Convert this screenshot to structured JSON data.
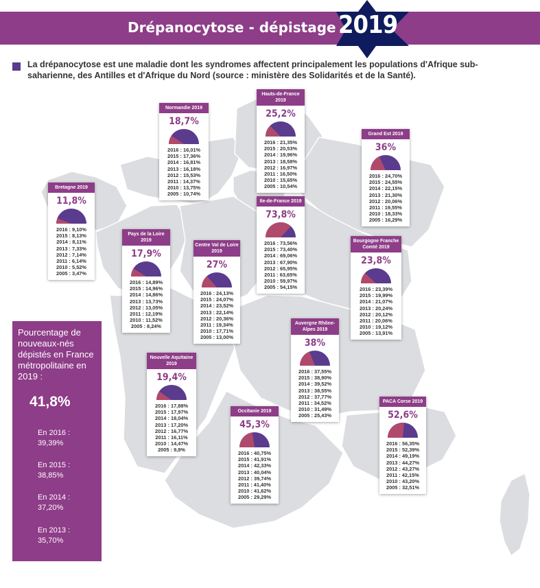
{
  "header": {
    "title": "Drépanocytose - dépistage",
    "year": "2019"
  },
  "intro": "La drépanocytose est une maladie dont les syndromes affectent principalement les populations d'Afrique sub-saharienne, des Antilles et d'Afrique du Nord (source : ministère des Solidarités et de la Santé).",
  "colors": {
    "brand": "#8e3d88",
    "dark_purple": "#5a3b8e",
    "gauge_red": "#b04a6c",
    "map_gray": "#dcdde0",
    "border": "#ffffff"
  },
  "sidebar": {
    "title": "Pourcentage de nouveaux-nés dépistés en France métropolitaine en 2019 :",
    "value": "41,8%",
    "items": [
      {
        "label": "En 2016 :",
        "value": "39,39%"
      },
      {
        "label": "En 2015 :",
        "value": "38,85%"
      },
      {
        "label": "En 2014 :",
        "value": "37,20%"
      },
      {
        "label": "En 2013 :",
        "value": "35,70%"
      }
    ]
  },
  "chart_data": {
    "type": "bar",
    "title": "Drépanocytose - dépistage",
    "national": {
      "year": 2019,
      "value": 41.8,
      "history": [
        {
          "year": 2016,
          "value": 39.39
        },
        {
          "year": 2015,
          "value": 38.85
        },
        {
          "year": 2014,
          "value": 37.2
        },
        {
          "year": 2013,
          "value": 35.7
        }
      ]
    },
    "regions": [
      {
        "name": "Normandie 2019",
        "value": 18.7,
        "value_label": "18,7%",
        "history": [
          "2016 : 16,01%",
          "2015 : 17,36%",
          "2014 : 16,81%",
          "2013 : 16,18%",
          "2012 : 15,53%",
          "2011 : 14,37%",
          "2010 : 13,75%",
          "2005 : 10,74%"
        ]
      },
      {
        "name": "Hauts-de-France 2019",
        "value": 25.2,
        "value_label": "25,2%",
        "history": [
          "2016 : 21,35%",
          "2015 : 20,53%",
          "2014 : 19,96%",
          "2013 : 18,58%",
          "2012 : 16,97%",
          "2011 : 16,50%",
          "2010 : 15,65%",
          "2005 : 10,54%"
        ]
      },
      {
        "name": "Grand Est 2019",
        "value": 36,
        "value_label": "36%",
        "history": [
          "2016 : 24,70%",
          "2015 : 24,55%",
          "2014 : 22,15%",
          "2013 : 21,30%",
          "2012 : 20,06%",
          "2011 : 19,55%",
          "2010 : 18,33%",
          "2005 : 16,29%"
        ]
      },
      {
        "name": "Bretagne 2019",
        "value": 11.8,
        "value_label": "11,8%",
        "history": [
          "2016 : 9,10%",
          "2015 : 8,13%",
          "2014 : 8,11%",
          "2013 : 7,33%",
          "2012 : 7,14%",
          "2011 : 6,14%",
          "2010 : 5,52%",
          "2005 : 3,47%"
        ]
      },
      {
        "name": "Ile-de-France 2019",
        "value": 73.8,
        "value_label": "73,8%",
        "history": [
          "2016 : 73,56%",
          "2015 : 73,40%",
          "2014 : 69,06%",
          "2013 : 67,90%",
          "2012 : 65,95%",
          "2011 : 63,65%",
          "2010 : 59,97%",
          "2005 : 54,15%"
        ]
      },
      {
        "name": "Pays de la Loire 2019",
        "value": 17.9,
        "value_label": "17,9%",
        "history": [
          "2016 : 14,89%",
          "2015 : 14,96%",
          "2014 : 14,86%",
          "2013 : 13,73%",
          "2012 : 13,05%",
          "2011 : 12,19%",
          "2010 : 11,52%",
          "2005 : 8,24%"
        ]
      },
      {
        "name": "Centre Val de Loire 2019",
        "value": 27,
        "value_label": "27%",
        "history": [
          "2016 : 24,13%",
          "2015 : 24,07%",
          "2014 : 23,52%",
          "2013 : 22,14%",
          "2012 : 20,36%",
          "2011 : 19,34%",
          "2010 : 17,71%",
          "2005 : 13,00%"
        ]
      },
      {
        "name": "Bourgogne Franche Comté 2019",
        "value": 23.8,
        "value_label": "23,8%",
        "history": [
          "2016 : 23,39%",
          "2015 : 19,99%",
          "2014 : 21,07%",
          "2013 : 20,24%",
          "2012 : 20,12%",
          "2011 : 20,06%",
          "2010 : 19,12%",
          "2005 : 13,91%"
        ]
      },
      {
        "name": "Auvergne Rhône-Alpes 2019",
        "value": 38,
        "value_label": "38%",
        "history": [
          "2016 : 37,55%",
          "2015 : 38,90%",
          "2014 : 39,52%",
          "2013 : 38,55%",
          "2012 : 37,77%",
          "2011 : 34,52%",
          "2010 : 31,49%",
          "2005 : 25,43%"
        ]
      },
      {
        "name": "Nouvelle Aquitaine 2019",
        "value": 19.4,
        "value_label": "19,4%",
        "history": [
          "2016 : 17,88%",
          "2015 : 17,97%",
          "2014 : 18,04%",
          "2013 : 17,20%",
          "2012 : 16,77%",
          "2011 : 16,11%",
          "2010 : 14,47%",
          "2005 : 9,8%"
        ]
      },
      {
        "name": "Occitanie 2019",
        "value": 45.3,
        "value_label": "45,3%",
        "history": [
          "2016 : 40,75%",
          "2015 : 41,91%",
          "2014 : 42,33%",
          "2013 : 40,04%",
          "2012 : 39,74%",
          "2011 : 41,40%",
          "2010 : 41,62%",
          "2005 : 29,29%"
        ]
      },
      {
        "name": "PACA Corse 2019",
        "value": 52.6,
        "value_label": "52,6%",
        "history": [
          "2016 : 56,35%",
          "2015 : 52,39%",
          "2014 : 49,19%",
          "2013 : 44,27%",
          "2012 : 43,27%",
          "2011 : 42,15%",
          "2010 : 43,20%",
          "2005 : 32,51%"
        ]
      }
    ]
  }
}
